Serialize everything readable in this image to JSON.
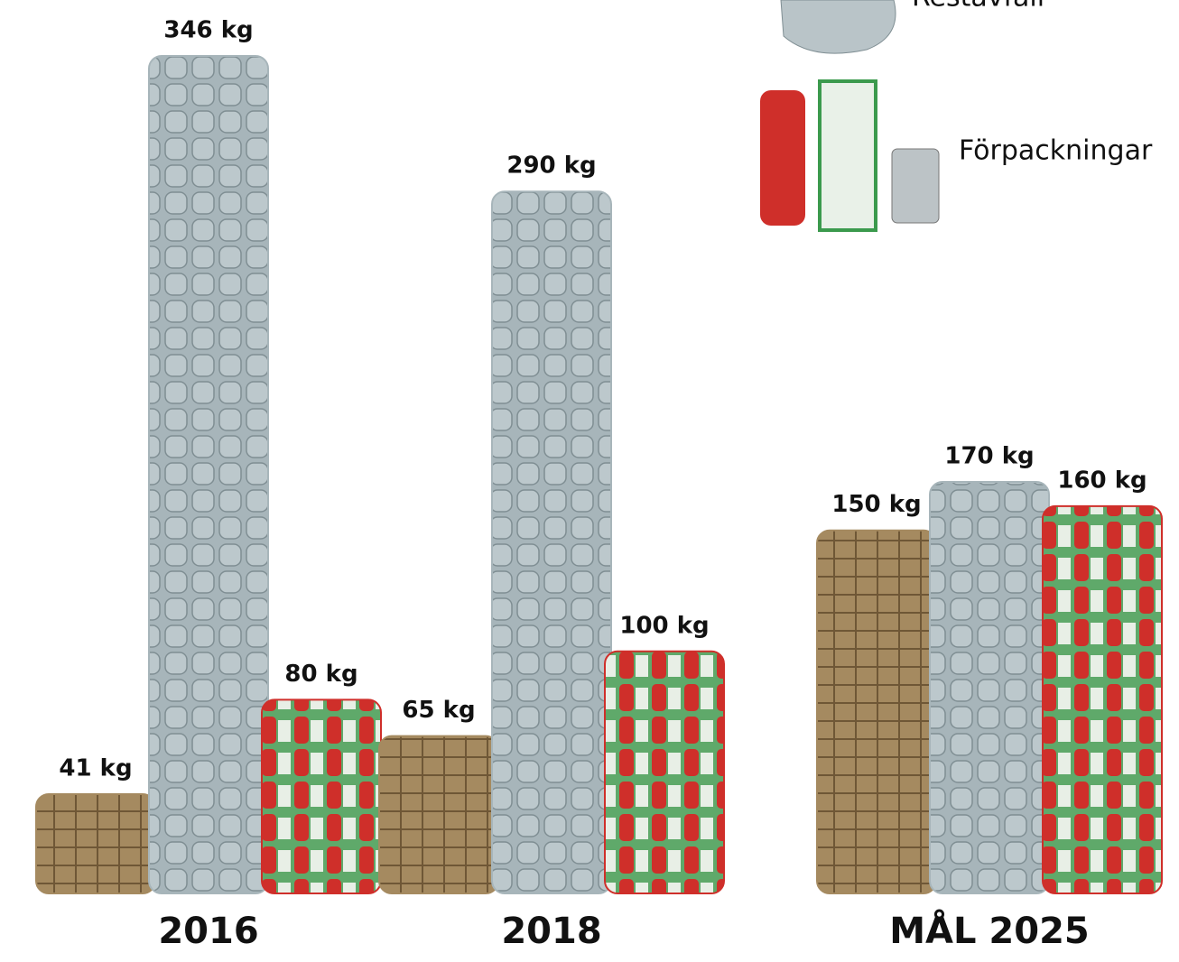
{
  "chart_data": {
    "type": "bar",
    "categories": [
      "2016",
      "2018",
      "MÅL 2025"
    ],
    "series": [
      {
        "color": "#a58a60",
        "values": [
          41,
          65,
          150
        ],
        "value_labels": [
          "41 kg",
          "65 kg",
          "150 kg"
        ]
      },
      {
        "name": "Restavfall",
        "color": "#a7b5ba",
        "values": [
          346,
          290,
          170
        ],
        "value_labels": [
          "346 kg",
          "290 kg",
          "170 kg"
        ]
      },
      {
        "name": "Förpackningar",
        "color": "#cf2f2a",
        "values": [
          80,
          100,
          160
        ],
        "value_labels": [
          "80 kg",
          "100 kg",
          "160 kg"
        ]
      }
    ]
  }
}
